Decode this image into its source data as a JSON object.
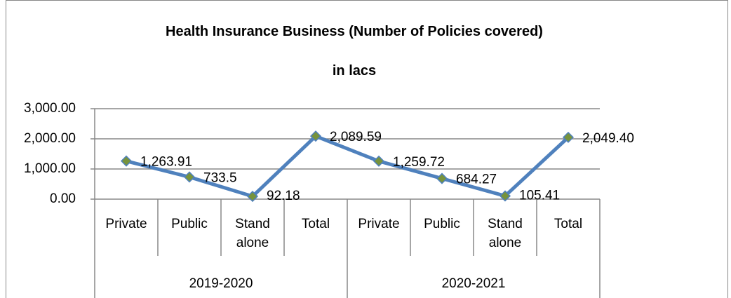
{
  "chart_data": {
    "type": "line",
    "title": "Health Insurance Business (Number of Policies covered)",
    "subtitle": "in lacs",
    "groups": [
      "2019-2020",
      "2020-2021"
    ],
    "categories": [
      "Private",
      "Public",
      "Stand alone",
      "Total",
      "Private",
      "Public",
      "Stand alone",
      "Total"
    ],
    "series": [
      {
        "name": "Policies",
        "color": "#4f81bd",
        "marker_color": "#77933c",
        "values": [
          1263.91,
          733.5,
          92.18,
          2089.59,
          1259.72,
          684.27,
          105.41,
          2049.4
        ],
        "value_labels": [
          "1,263.91",
          "733.5",
          "92.18",
          "2,089.59",
          "1,259.72",
          "684.27",
          "105.41",
          "2,049.40"
        ]
      }
    ],
    "ylim": [
      0,
      3000
    ],
    "yticks": [
      {
        "value": 0,
        "label": "0.00"
      },
      {
        "value": 1000,
        "label": "1,000.00"
      },
      {
        "value": 2000,
        "label": "2,000.00"
      },
      {
        "value": 3000,
        "label": "3,000.00"
      }
    ],
    "grid": true
  }
}
